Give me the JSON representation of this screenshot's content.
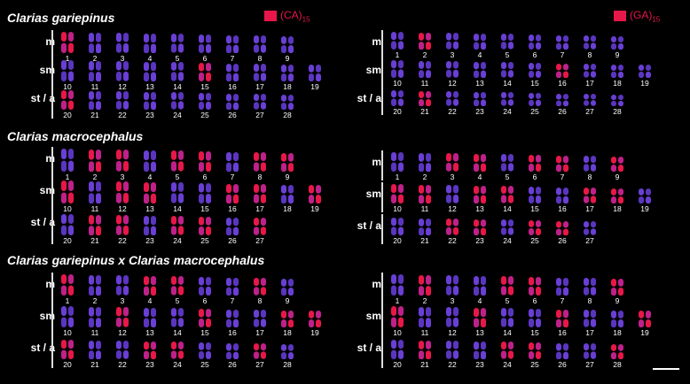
{
  "species_titles": {
    "first": "Clarias gariepinus",
    "second": "Clarias macrocephalus",
    "hybrid": "Clarias gariepinus x Clarias macrocephalus"
  },
  "probes": {
    "left": {
      "text": "(CA)",
      "sub": "15",
      "color": "#e8174a"
    },
    "right": {
      "text": "(GA)",
      "sub": "15",
      "color": "#e8174a"
    }
  },
  "row_labels": {
    "m": "m",
    "sm": "sm",
    "sta": "st / a"
  },
  "colors": {
    "background": "#000000",
    "chromosome_blue": "#6a3fd6",
    "signal_red": "#e8174a"
  },
  "panels": [
    {
      "species": "first",
      "probe": "left",
      "rows": {
        "m": [
          "1",
          "2",
          "3",
          "4",
          "5",
          "6",
          "7",
          "8",
          "9"
        ],
        "sm": [
          "10",
          "11",
          "12",
          "13",
          "14",
          "15",
          "16",
          "17",
          "18",
          "19"
        ],
        "sta": [
          "20",
          "21",
          "22",
          "23",
          "24",
          "25",
          "26",
          "27",
          "28"
        ]
      }
    },
    {
      "species": "first",
      "probe": "right",
      "rows": {
        "m": [
          "1",
          "2",
          "3",
          "4",
          "5",
          "6",
          "7",
          "8",
          "9"
        ],
        "sm": [
          "10",
          "11",
          "12",
          "13",
          "14",
          "15",
          "16",
          "17",
          "18",
          "19"
        ],
        "sta": [
          "20",
          "21",
          "22",
          "23",
          "24",
          "25",
          "26",
          "27",
          "28"
        ]
      }
    },
    {
      "species": "second",
      "probe": "left",
      "rows": {
        "m": [
          "1",
          "2",
          "3",
          "4",
          "5",
          "6",
          "7",
          "8",
          "9"
        ],
        "sm": [
          "10",
          "11",
          "12",
          "13",
          "14",
          "15",
          "16",
          "17",
          "18",
          "19"
        ],
        "sta": [
          "20",
          "21",
          "22",
          "23",
          "24",
          "25",
          "26",
          "27"
        ]
      }
    },
    {
      "species": "second",
      "probe": "right",
      "rows": {
        "m": [
          "1",
          "2",
          "3",
          "4",
          "5",
          "6",
          "7",
          "8",
          "9"
        ],
        "sm": [
          "10",
          "11",
          "12",
          "13",
          "14",
          "15",
          "16",
          "17",
          "18",
          "19"
        ],
        "sta": [
          "20",
          "21",
          "22",
          "23",
          "24",
          "25",
          "26",
          "27"
        ]
      }
    },
    {
      "species": "hybrid",
      "probe": "left",
      "rows": {
        "m": [
          "1",
          "2",
          "3",
          "4",
          "5",
          "6",
          "7",
          "8",
          "9"
        ],
        "sm": [
          "10",
          "11",
          "12",
          "13",
          "14",
          "15",
          "16",
          "17",
          "18",
          "19"
        ],
        "sta": [
          "20",
          "21",
          "22",
          "23",
          "24",
          "25",
          "26",
          "27",
          "28"
        ]
      }
    },
    {
      "species": "hybrid",
      "probe": "right",
      "rows": {
        "m": [
          "1",
          "2",
          "3",
          "4",
          "5",
          "6",
          "7",
          "8",
          "9"
        ],
        "sm": [
          "10",
          "11",
          "12",
          "13",
          "14",
          "15",
          "16",
          "17",
          "18",
          "19"
        ],
        "sta": [
          "20",
          "21",
          "22",
          "23",
          "24",
          "25",
          "26",
          "27",
          "28"
        ]
      }
    }
  ]
}
